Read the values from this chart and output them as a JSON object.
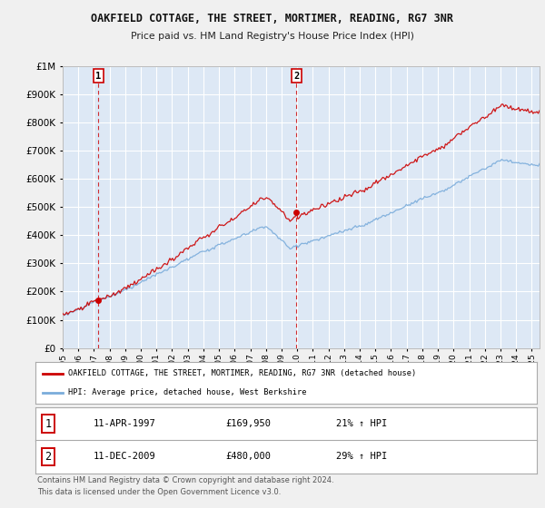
{
  "title": "OAKFIELD COTTAGE, THE STREET, MORTIMER, READING, RG7 3NR",
  "subtitle": "Price paid vs. HM Land Registry's House Price Index (HPI)",
  "legend_line1": "OAKFIELD COTTAGE, THE STREET, MORTIMER, READING, RG7 3NR (detached house)",
  "legend_line2": "HPI: Average price, detached house, West Berkshire",
  "sale1_date": "11-APR-1997",
  "sale1_price": "£169,950",
  "sale1_hpi": "21% ↑ HPI",
  "sale1_year": 1997.28,
  "sale1_value": 169950,
  "sale2_date": "11-DEC-2009",
  "sale2_price": "£480,000",
  "sale2_hpi": "29% ↑ HPI",
  "sale2_year": 2009.95,
  "sale2_value": 480000,
  "ylim": [
    0,
    1000000
  ],
  "xlim_start": 1995.0,
  "xlim_end": 2025.5,
  "background_color": "#dde8f5",
  "fig_color": "#f0f0f0",
  "grid_color": "#ffffff",
  "red_color": "#cc0000",
  "blue_color": "#7aacdb",
  "footnote1": "Contains HM Land Registry data © Crown copyright and database right 2024.",
  "footnote2": "This data is licensed under the Open Government Licence v3.0."
}
